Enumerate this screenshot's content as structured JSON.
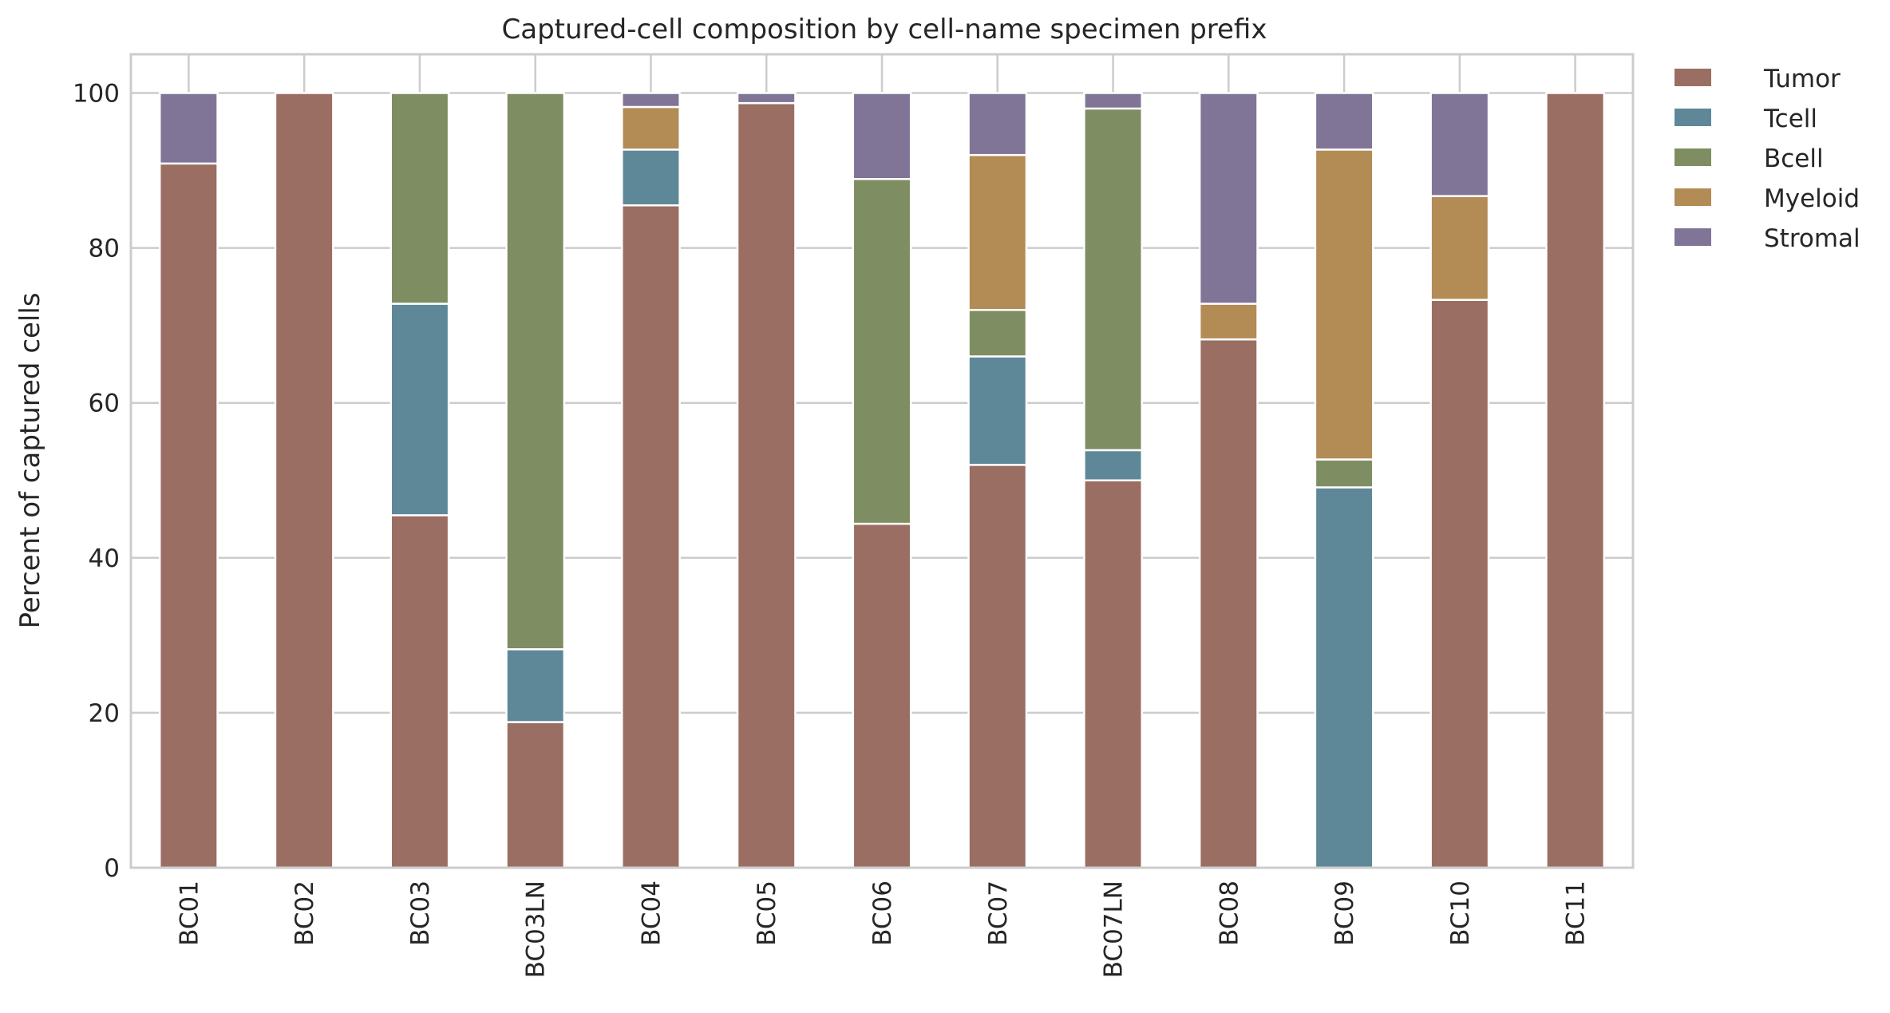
{
  "chart_data": {
    "type": "bar",
    "stacked": true,
    "title": "Captured-cell composition by cell-name specimen prefix",
    "xlabel": "",
    "ylabel": "Percent of captured cells",
    "ylim": [
      0,
      105
    ],
    "yticks": [
      0,
      20,
      40,
      60,
      80,
      100
    ],
    "grid": true,
    "legend_position": "outside-right",
    "categories": [
      "BC01",
      "BC02",
      "BC03",
      "BC03LN",
      "BC04",
      "BC05",
      "BC06",
      "BC07",
      "BC07LN",
      "BC08",
      "BC09",
      "BC10",
      "BC11"
    ],
    "series": [
      {
        "name": "Tumor",
        "color": "#9a6e63",
        "values": [
          90.9,
          100,
          45.5,
          18.8,
          85.5,
          98.7,
          44.4,
          52.0,
          50.0,
          68.2,
          0,
          73.3,
          100
        ]
      },
      {
        "name": "Tcell",
        "color": "#5e8898",
        "values": [
          0,
          0,
          27.3,
          9.4,
          7.2,
          0,
          0,
          14.0,
          3.9,
          0,
          49.1,
          0,
          0
        ]
      },
      {
        "name": "Bcell",
        "color": "#7f8d62",
        "values": [
          0,
          0,
          27.2,
          71.8,
          0,
          0,
          44.5,
          6.0,
          44.1,
          0,
          3.6,
          0,
          0
        ]
      },
      {
        "name": "Myeloid",
        "color": "#b38b55",
        "values": [
          0,
          0,
          0,
          0,
          5.5,
          0,
          0,
          20.0,
          0,
          4.6,
          40.0,
          13.4,
          0
        ]
      },
      {
        "name": "Stromal",
        "color": "#807597",
        "values": [
          9.1,
          0,
          0,
          0,
          1.8,
          1.3,
          11.1,
          8.0,
          2.0,
          27.2,
          7.3,
          13.3,
          0
        ]
      }
    ]
  }
}
